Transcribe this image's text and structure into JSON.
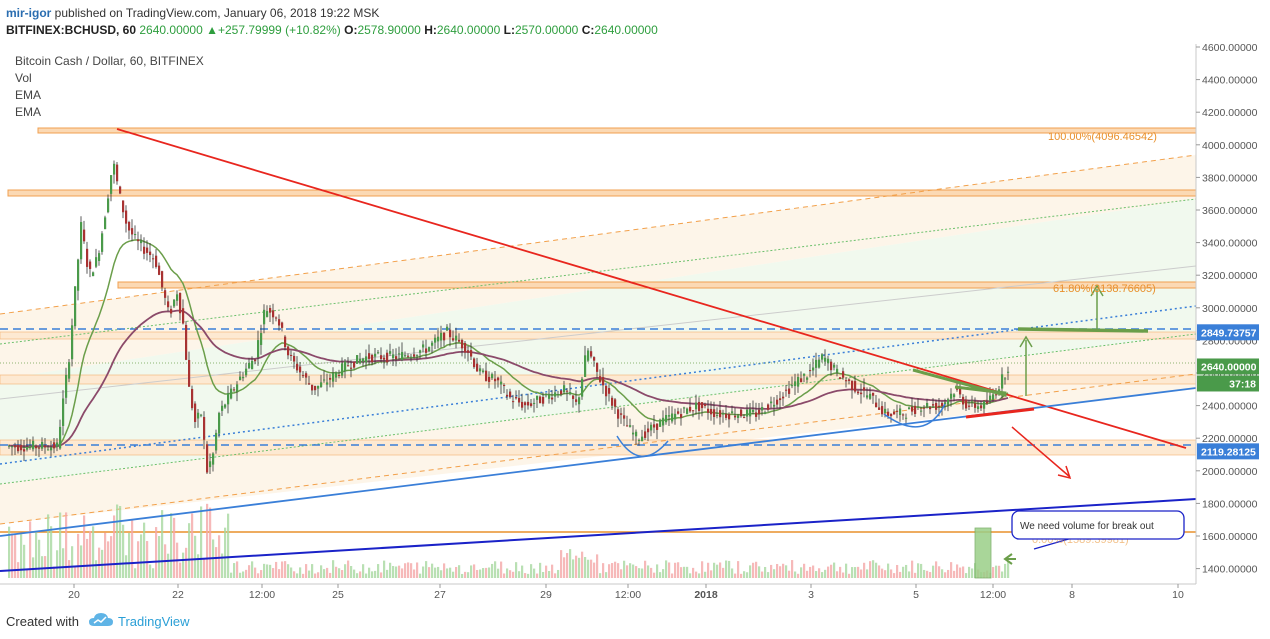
{
  "header": {
    "author": "mir-igor",
    "published": " published on TradingView.com, January 06, 2018 19:22 MSK",
    "symbol": "BITFINEX:BCHUSD, 60",
    "last": "2640.00000",
    "change": "+257.79999 (+10.82%)",
    "o_label": "O:",
    "o": "2578.90000",
    "h_label": "H:",
    "h": "2640.00000",
    "l_label": "L:",
    "l": "2570.00000",
    "c_label": "C:",
    "c": "2640.00000"
  },
  "legend": {
    "title": "Bitcoin Cash / Dollar, 60, BITFINEX",
    "items": [
      "Vol",
      "EMA",
      "EMA"
    ]
  },
  "footer": {
    "created": "Created with",
    "brand": "TradingView"
  },
  "colors": {
    "up": "#4a9a4a",
    "down": "#a83232",
    "trend_red": "#e8261e",
    "blue": "#3a7fd8",
    "navy": "#1a22c8",
    "orange": "#f2a04a",
    "green_ema": "#6b9e4a",
    "purple_ema": "#8b4a6a"
  },
  "chart_data": {
    "type": "candlestick",
    "symbol": "BITFINEX:BCHUSD",
    "timeframe": "60",
    "ylim": [
      1300,
      4600
    ],
    "y_ticks": [
      "4600.00000",
      "4400.00000",
      "4200.00000",
      "4000.00000",
      "3800.00000",
      "3600.00000",
      "3400.00000",
      "3200.00000",
      "3000.00000",
      "2800.00000",
      "2600.00000",
      "2400.00000",
      "2200.00000",
      "2000.00000",
      "1800.00000",
      "1600.00000",
      "1400.00000"
    ],
    "x_ticks": [
      "20",
      "22",
      "12:00",
      "25",
      "27",
      "29",
      "12:00",
      "2018",
      "3",
      "5",
      "12:00",
      "8",
      "10"
    ],
    "price_labels": [
      {
        "value": 2849.73757,
        "text": "2849.73757",
        "color": "#3a7fd8"
      },
      {
        "value": 2640.0,
        "text": "2640.00000",
        "color": "#4a9a4a"
      },
      {
        "text": "37:18",
        "color": "#4a9a4a"
      },
      {
        "value": 2119.28125,
        "text": "2119.28125",
        "color": "#3a7fd8"
      }
    ],
    "fib_labels": [
      {
        "value": 4096.46542,
        "text": "100.00%(4096.46542)"
      },
      {
        "value": 3138.76605,
        "text": "61.80%(3138.76605)"
      },
      {
        "value": 1589.39981,
        "text": "0.00%(1589.39981)"
      }
    ],
    "annotation": "We need volume for break out",
    "series": [
      {
        "name": "EMA",
        "color": "#6b9e4a"
      },
      {
        "name": "EMA",
        "color": "#8b4a6a"
      }
    ]
  }
}
